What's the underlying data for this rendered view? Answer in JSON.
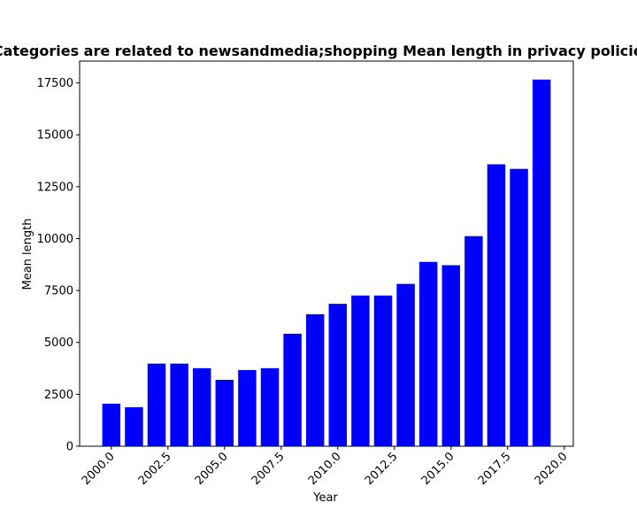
{
  "chart_data": {
    "type": "bar",
    "title": "Categories are related to newsandmedia;shopping Mean length in privacy policies",
    "xlabel": "Year",
    "ylabel": "Mean length",
    "x": [
      2000,
      2001,
      2002,
      2003,
      2004,
      2005,
      2006,
      2007,
      2008,
      2009,
      2010,
      2011,
      2012,
      2013,
      2014,
      2015,
      2016,
      2017,
      2018,
      2019
    ],
    "values": [
      2050,
      1880,
      3980,
      3980,
      3760,
      3200,
      3670,
      3760,
      5420,
      6360,
      6860,
      7260,
      7260,
      7820,
      8880,
      8720,
      10120,
      13580,
      13360,
      17660
    ],
    "xlim": [
      1998.6,
      2020.4
    ],
    "ylim": [
      0,
      18550
    ],
    "xticks": [
      2000.0,
      2002.5,
      2005.0,
      2007.5,
      2010.0,
      2012.5,
      2015.0,
      2017.5,
      2020.0
    ],
    "xtick_labels": [
      "2000.0",
      "2002.5",
      "2005.0",
      "2007.5",
      "2010.0",
      "2012.5",
      "2015.0",
      "2017.5",
      "2020.0"
    ],
    "yticks": [
      0,
      2500,
      5000,
      7500,
      10000,
      12500,
      15000,
      17500
    ],
    "ytick_labels": [
      "0",
      "2500",
      "5000",
      "7500",
      "10000",
      "12500",
      "15000",
      "17500"
    ],
    "bar_width": 0.8,
    "bar_color": "#0000ff",
    "grid": false,
    "legend": false
  }
}
